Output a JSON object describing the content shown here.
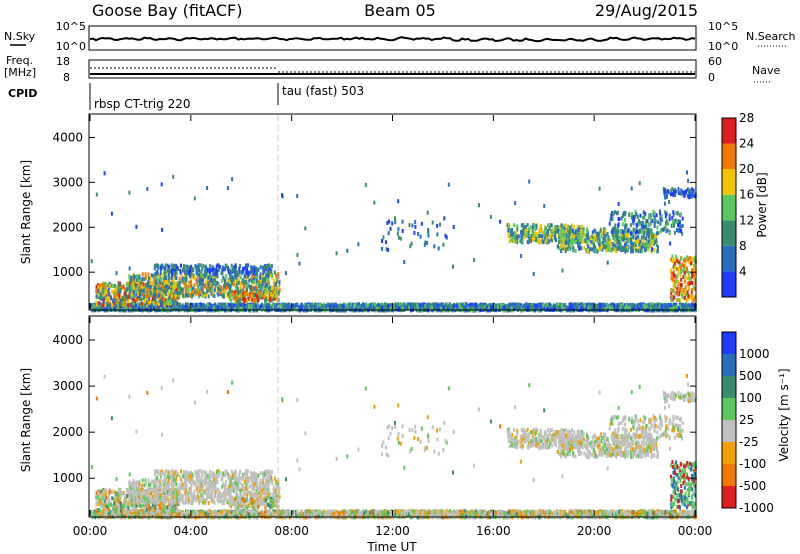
{
  "header": {
    "station": "Goose Bay (fitACF)",
    "beam": "Beam 05",
    "date": "29/Aug/2015"
  },
  "summary": {
    "nsky_label": "N.Sky",
    "nsky_ticks": [
      "10^5",
      "10^0"
    ],
    "nsearch_label": "N.Search",
    "nsearch_ticks": [
      "10^5",
      "10^0"
    ],
    "freq_label_line1": "Freq.",
    "freq_label_line2": "[MHz]",
    "freq_ticks": [
      "18",
      "8"
    ],
    "nave_label": "Nave",
    "nave_ticks": [
      "60",
      "0"
    ],
    "cpid_label": "CPID",
    "cpid_segments": [
      {
        "name": "rbsp CT-trig 220",
        "start_hour": 0.0
      },
      {
        "name": "tau (fast) 503",
        "start_hour": 7.6
      }
    ]
  },
  "chart_data": [
    {
      "type": "heatmap",
      "name": "power",
      "ylabel": "Slant Range [km]",
      "yticks": [
        1000,
        2000,
        3000,
        4000
      ],
      "ylim": [
        180,
        4500
      ],
      "colorbar_label": "Power [dB]",
      "colorbar_ticks": [
        "4",
        "8",
        "12",
        "16",
        "20",
        "24",
        "28"
      ],
      "colorbar_colors": [
        "#1e3cff",
        "#2a6fbf",
        "#3a8c6e",
        "#5cc85c",
        "#f2c400",
        "#f07800",
        "#dc1e1e"
      ]
    },
    {
      "type": "heatmap",
      "name": "velocity",
      "ylabel": "Slant Range [km]",
      "yticks": [
        1000,
        2000,
        3000,
        4000
      ],
      "ylim": [
        180,
        4500
      ],
      "colorbar_label": "Velocity [m s⁻¹]",
      "colorbar_ticks": [
        "1000",
        "500",
        "100",
        "25",
        "-25",
        "-100",
        "-500",
        "-1000"
      ],
      "colorbar_colors": [
        "#1e3cff",
        "#2a6fbf",
        "#3a8c6e",
        "#5cc85c",
        "#c0c0c0",
        "#f0a000",
        "#f07800",
        "#dc1e1e"
      ]
    }
  ],
  "xaxis": {
    "label": "Time UT",
    "ticks": [
      "00:00",
      "04:00",
      "08:00",
      "12:00",
      "16:00",
      "20:00",
      "00:00"
    ],
    "xlim_hours": [
      0,
      24
    ]
  }
}
